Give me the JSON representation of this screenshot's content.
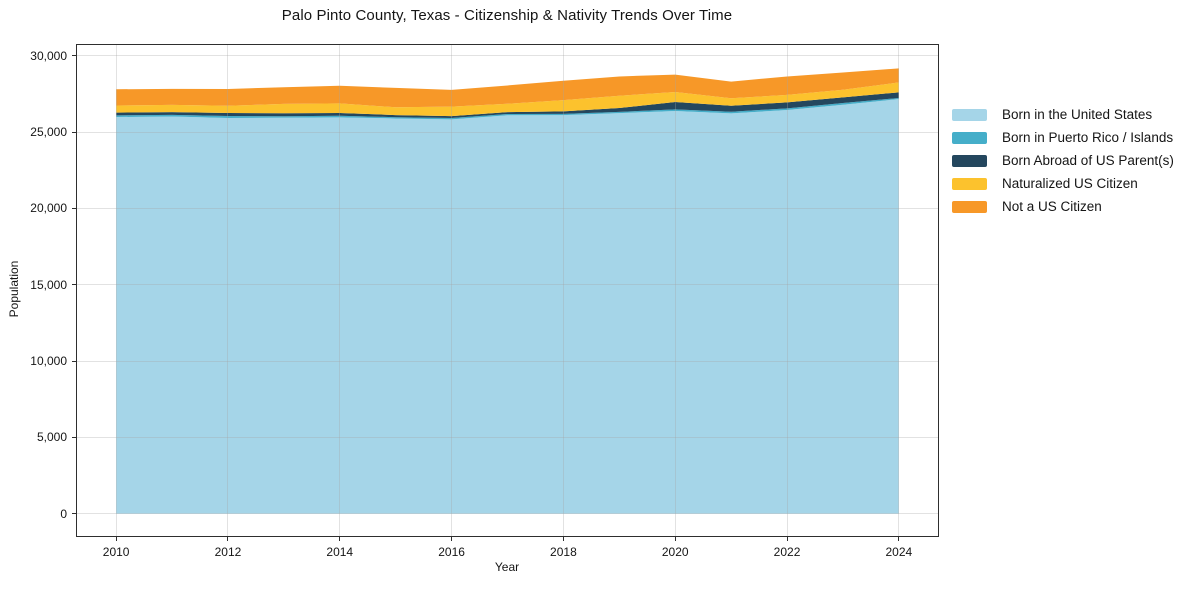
{
  "title": "Palo Pinto County, Texas - Citizenship & Nativity Trends Over Time",
  "chart_data": {
    "type": "area",
    "stacked": true,
    "title": "Palo Pinto County, Texas - Citizenship & Nativity Trends Over Time",
    "xlabel": "Year",
    "ylabel": "Population",
    "x": [
      2010,
      2011,
      2012,
      2013,
      2014,
      2015,
      2016,
      2017,
      2018,
      2019,
      2020,
      2021,
      2022,
      2023,
      2024
    ],
    "series": [
      {
        "name": "Born in the United States",
        "color": "#a5d5e8",
        "values": [
          25980,
          26020,
          25920,
          25940,
          25960,
          25890,
          25830,
          26100,
          26110,
          26240,
          26380,
          26220,
          26440,
          26790,
          27160
        ]
      },
      {
        "name": "Born in Puerto Rico / Islands",
        "color": "#45aec9",
        "values": [
          110,
          100,
          130,
          90,
          110,
          80,
          90,
          80,
          80,
          80,
          100,
          110,
          110,
          110,
          70
        ]
      },
      {
        "name": "Born Abroad of US Parent(s)",
        "color": "#24475e",
        "values": [
          180,
          180,
          200,
          200,
          180,
          140,
          120,
          120,
          160,
          250,
          490,
          390,
          390,
          370,
          370
        ]
      },
      {
        "name": "Naturalized US Citizen",
        "color": "#fcc22d",
        "values": [
          470,
          480,
          470,
          610,
          630,
          510,
          620,
          550,
          740,
          810,
          650,
          490,
          490,
          500,
          650
        ]
      },
      {
        "name": "Not a US Citizen",
        "color": "#f79828",
        "values": [
          1060,
          1050,
          1100,
          1090,
          1150,
          1270,
          1100,
          1200,
          1270,
          1260,
          1140,
          1090,
          1210,
          1130,
          920
        ]
      }
    ],
    "totals": [
      27800,
      27830,
      27820,
      27930,
      28030,
      27890,
      27760,
      28050,
      28360,
      28640,
      28760,
      28300,
      28640,
      28900,
      29170
    ],
    "xticks": [
      2010,
      2012,
      2014,
      2016,
      2018,
      2020,
      2022,
      2024
    ],
    "xtick_labels": [
      "2010",
      "2012",
      "2014",
      "2016",
      "2018",
      "2020",
      "2022",
      "2024"
    ],
    "yticks": [
      0,
      5000,
      10000,
      15000,
      20000,
      25000,
      30000
    ],
    "ytick_labels": [
      "0",
      "5,000",
      "10,000",
      "15,000",
      "20,000",
      "25,000",
      "30,000"
    ],
    "xlim": [
      2009.3,
      2024.7
    ],
    "ylim": [
      -1460,
      30700
    ],
    "grid": true,
    "legend_position": "right-outside",
    "background_color": "#ffffff",
    "spine_color": "#2e2e2e"
  }
}
